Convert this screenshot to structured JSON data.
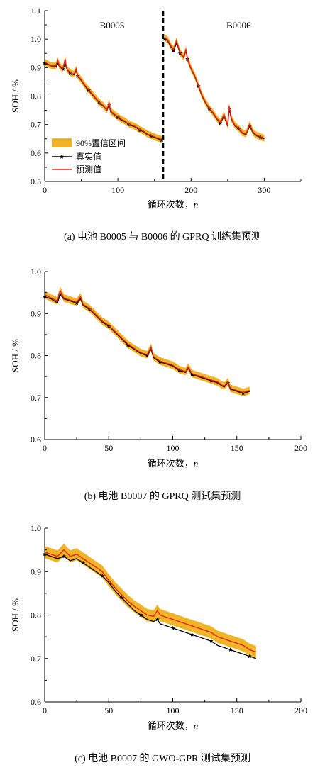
{
  "colors": {
    "band": "#f0b428",
    "true": "#000000",
    "pred": "#e8231a",
    "divider": "#000000"
  },
  "legend": {
    "band": "90%置信区间",
    "true": "真实值",
    "pred": "预测值"
  },
  "chart_data": [
    {
      "type": "line",
      "caption": "(a)  电池 B0005 与 B0006 的 GPRQ 训练集预测",
      "xlabel": "循环次数，",
      "xlabel_var": "n",
      "ylabel": "SOH / %",
      "xlim": [
        0,
        350
      ],
      "ylim": [
        0.5,
        1.1
      ],
      "xticks": [
        0,
        100,
        200,
        300
      ],
      "yticks": [
        0.5,
        0.6,
        0.7,
        0.8,
        0.9,
        1.0,
        1.1
      ],
      "regions": [
        {
          "label": "B0005",
          "x": 92
        },
        {
          "label": "B0006",
          "x": 265
        }
      ],
      "divider_x": 162,
      "legend": true,
      "band_width": 0.012,
      "segments": [
        {
          "x": [
            0,
            5,
            10,
            15,
            18,
            20,
            25,
            28,
            30,
            35,
            40,
            43,
            45,
            50,
            55,
            60,
            65,
            70,
            75,
            80,
            85,
            88,
            90,
            95,
            100,
            105,
            110,
            115,
            120,
            125,
            130,
            135,
            140,
            145,
            150,
            155,
            160
          ],
          "true": [
            0.915,
            0.91,
            0.905,
            0.905,
            0.915,
            0.905,
            0.895,
            0.915,
            0.895,
            0.88,
            0.875,
            0.89,
            0.87,
            0.855,
            0.835,
            0.82,
            0.805,
            0.79,
            0.775,
            0.765,
            0.75,
            0.77,
            0.745,
            0.735,
            0.725,
            0.715,
            0.71,
            0.7,
            0.695,
            0.69,
            0.68,
            0.675,
            0.665,
            0.66,
            0.655,
            0.65,
            0.645
          ],
          "pred": [
            0.92,
            0.912,
            0.906,
            0.906,
            0.925,
            0.906,
            0.897,
            0.93,
            0.896,
            0.882,
            0.877,
            0.895,
            0.872,
            0.857,
            0.837,
            0.822,
            0.807,
            0.792,
            0.777,
            0.767,
            0.752,
            0.778,
            0.747,
            0.737,
            0.727,
            0.718,
            0.712,
            0.702,
            0.697,
            0.692,
            0.682,
            0.677,
            0.667,
            0.662,
            0.657,
            0.652,
            0.648
          ]
        },
        {
          "x": [
            164,
            168,
            172,
            176,
            180,
            182,
            185,
            190,
            193,
            195,
            200,
            205,
            210,
            215,
            220,
            225,
            230,
            235,
            240,
            245,
            250,
            252,
            255,
            260,
            265,
            270,
            275,
            280,
            285,
            290,
            295,
            300
          ],
          "true": [
            1.0,
            0.995,
            0.975,
            0.96,
            0.985,
            0.975,
            0.95,
            0.935,
            0.96,
            0.93,
            0.895,
            0.87,
            0.835,
            0.8,
            0.775,
            0.755,
            0.74,
            0.72,
            0.705,
            0.73,
            0.695,
            0.755,
            0.72,
            0.695,
            0.685,
            0.67,
            0.665,
            0.695,
            0.67,
            0.66,
            0.655,
            0.65
          ],
          "pred": [
            1.005,
            0.998,
            0.978,
            0.963,
            0.995,
            0.978,
            0.952,
            0.937,
            0.965,
            0.932,
            0.897,
            0.872,
            0.837,
            0.802,
            0.777,
            0.757,
            0.742,
            0.722,
            0.707,
            0.735,
            0.697,
            0.765,
            0.722,
            0.697,
            0.687,
            0.672,
            0.667,
            0.7,
            0.672,
            0.662,
            0.657,
            0.652
          ]
        }
      ]
    },
    {
      "type": "line",
      "caption": "(b)  电池 B0007 的 GPRQ 测试集预测",
      "xlabel": "循环次数，",
      "xlabel_var": "n",
      "ylabel": "SOH / %",
      "xlim": [
        0,
        200
      ],
      "ylim": [
        0.6,
        1.0
      ],
      "xticks": [
        0,
        50,
        100,
        150,
        200
      ],
      "yticks": [
        0.6,
        0.7,
        0.8,
        0.9,
        1.0
      ],
      "legend": false,
      "band_width": 0.009,
      "segments": [
        {
          "x": [
            0,
            5,
            10,
            12,
            15,
            20,
            25,
            28,
            30,
            35,
            40,
            45,
            50,
            55,
            60,
            65,
            70,
            75,
            80,
            83,
            85,
            90,
            95,
            100,
            105,
            110,
            112,
            115,
            120,
            125,
            130,
            135,
            140,
            143,
            145,
            150,
            155,
            160
          ],
          "true": [
            0.94,
            0.935,
            0.925,
            0.945,
            0.935,
            0.93,
            0.925,
            0.935,
            0.92,
            0.91,
            0.895,
            0.88,
            0.87,
            0.855,
            0.84,
            0.825,
            0.815,
            0.805,
            0.8,
            0.815,
            0.795,
            0.785,
            0.78,
            0.775,
            0.765,
            0.76,
            0.77,
            0.755,
            0.75,
            0.745,
            0.74,
            0.735,
            0.725,
            0.735,
            0.72,
            0.715,
            0.71,
            0.715
          ],
          "pred": [
            0.945,
            0.937,
            0.93,
            0.955,
            0.937,
            0.932,
            0.927,
            0.94,
            0.922,
            0.912,
            0.897,
            0.882,
            0.872,
            0.857,
            0.842,
            0.827,
            0.817,
            0.807,
            0.802,
            0.82,
            0.797,
            0.787,
            0.782,
            0.777,
            0.767,
            0.762,
            0.773,
            0.757,
            0.752,
            0.747,
            0.742,
            0.737,
            0.727,
            0.738,
            0.722,
            0.717,
            0.712,
            0.717
          ]
        }
      ]
    },
    {
      "type": "line",
      "caption": "(c)  电池 B0007 的 GWO-GPR 测试集预测",
      "xlabel": "循环次数，",
      "xlabel_var": "n",
      "ylabel": "SOH / %",
      "xlim": [
        0,
        200
      ],
      "ylim": [
        0.6,
        1.0
      ],
      "xticks": [
        0,
        50,
        100,
        150,
        200
      ],
      "yticks": [
        0.6,
        0.7,
        0.8,
        0.9,
        1.0
      ],
      "legend": false,
      "band_width": 0.014,
      "segments": [
        {
          "x": [
            0,
            5,
            10,
            15,
            20,
            25,
            30,
            35,
            40,
            45,
            50,
            55,
            60,
            65,
            70,
            75,
            80,
            85,
            88,
            90,
            95,
            100,
            105,
            110,
            115,
            120,
            125,
            130,
            135,
            140,
            145,
            150,
            155,
            160,
            165
          ],
          "true": [
            0.94,
            0.935,
            0.93,
            0.935,
            0.925,
            0.93,
            0.92,
            0.91,
            0.9,
            0.89,
            0.875,
            0.855,
            0.84,
            0.825,
            0.81,
            0.8,
            0.79,
            0.785,
            0.79,
            0.78,
            0.775,
            0.77,
            0.765,
            0.76,
            0.755,
            0.75,
            0.745,
            0.74,
            0.73,
            0.725,
            0.72,
            0.715,
            0.71,
            0.705,
            0.7
          ],
          "pred": [
            0.945,
            0.94,
            0.935,
            0.95,
            0.935,
            0.94,
            0.93,
            0.92,
            0.91,
            0.9,
            0.88,
            0.862,
            0.847,
            0.832,
            0.82,
            0.81,
            0.8,
            0.797,
            0.81,
            0.8,
            0.795,
            0.79,
            0.785,
            0.78,
            0.775,
            0.77,
            0.765,
            0.76,
            0.75,
            0.745,
            0.74,
            0.735,
            0.73,
            0.72,
            0.715
          ]
        }
      ]
    }
  ]
}
